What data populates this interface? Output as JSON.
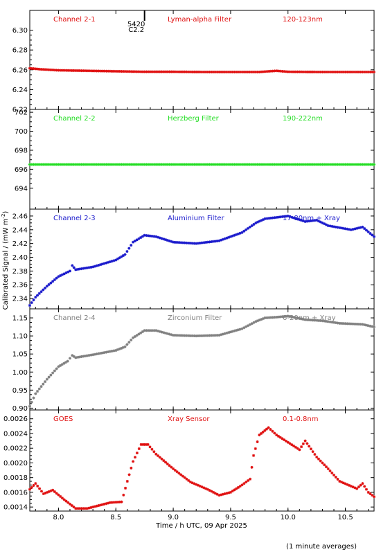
{
  "chart_data": {
    "type": "scatter",
    "xlabel": "Time / h UTC, 09 Apr 2025",
    "ylabel": "Calibrated Signal / (mW m",
    "ylabel_sup": "-2",
    "ylabel_close": ")",
    "footnote": "(1 minute averages)",
    "xlim": [
      7.75,
      10.75
    ],
    "xticks": [
      8.0,
      8.5,
      9.0,
      9.5,
      10.0,
      10.5
    ],
    "xtick_labels": [
      "8.0",
      "8.5",
      "9.0",
      "9.5",
      "10.0",
      "10.5"
    ],
    "flare_marker": {
      "x": 8.75,
      "labels": [
        "5420",
        "C2.2"
      ]
    },
    "panels": [
      {
        "name": "Channel 2-1",
        "labels": [
          "Channel 2-1",
          "Lyman-alpha Filter",
          "120-123nm"
        ],
        "color": "#e01010",
        "ylim": [
          6.22,
          6.32
        ],
        "yticks": [
          6.22,
          6.24,
          6.26,
          6.28,
          6.3
        ],
        "ytick_labels": [
          "6.22",
          "6.24",
          "6.26",
          "6.28",
          "6.30"
        ],
        "points": [
          [
            7.75,
            6.2615
          ],
          [
            7.85,
            6.2605
          ],
          [
            8.0,
            6.2595
          ],
          [
            8.25,
            6.259
          ],
          [
            8.5,
            6.2585
          ],
          [
            8.75,
            6.258
          ],
          [
            9.0,
            6.258
          ],
          [
            9.25,
            6.2578
          ],
          [
            9.5,
            6.2578
          ],
          [
            9.75,
            6.2578
          ],
          [
            9.9,
            6.259
          ],
          [
            10.0,
            6.258
          ],
          [
            10.25,
            6.2578
          ],
          [
            10.5,
            6.2578
          ],
          [
            10.75,
            6.2578
          ]
        ]
      },
      {
        "name": "Channel 2-2",
        "labels": [
          "Channel 2-2",
          "Herzberg Filter",
          "190-222nm"
        ],
        "color": "#22dd22",
        "ylim": [
          691.8,
          702.3
        ],
        "yticks": [
          694,
          696,
          698,
          700,
          702
        ],
        "ytick_labels": [
          "694",
          "696",
          "698",
          "700",
          "702"
        ],
        "points": [
          [
            7.75,
            696.5
          ],
          [
            8.5,
            696.5
          ],
          [
            9.0,
            696.5
          ],
          [
            9.25,
            696.5
          ],
          [
            9.5,
            696.5
          ],
          [
            10.0,
            696.5
          ],
          [
            10.5,
            696.5
          ],
          [
            10.75,
            696.5
          ]
        ]
      },
      {
        "name": "Channel 2-3",
        "labels": [
          "Channel 2-3",
          "Aluminium Filter",
          "17-80nm + Xray"
        ],
        "color": "#1a1acc",
        "ylim": [
          2.325,
          2.47
        ],
        "yticks": [
          2.34,
          2.36,
          2.38,
          2.4,
          2.42,
          2.44,
          2.46
        ],
        "ytick_labels": [
          "2.34",
          "2.36",
          "2.38",
          "2.40",
          "2.42",
          "2.44",
          "2.46"
        ],
        "points": [
          [
            7.75,
            2.33
          ],
          [
            7.8,
            2.342
          ],
          [
            7.9,
            2.358
          ],
          [
            8.0,
            2.372
          ],
          [
            8.1,
            2.38
          ],
          [
            8.12,
            2.388
          ],
          [
            8.15,
            2.382
          ],
          [
            8.3,
            2.386
          ],
          [
            8.5,
            2.396
          ],
          [
            8.58,
            2.404
          ],
          [
            8.65,
            2.422
          ],
          [
            8.75,
            2.432
          ],
          [
            8.85,
            2.43
          ],
          [
            9.0,
            2.422
          ],
          [
            9.2,
            2.42
          ],
          [
            9.4,
            2.424
          ],
          [
            9.6,
            2.436
          ],
          [
            9.72,
            2.45
          ],
          [
            9.8,
            2.456
          ],
          [
            9.9,
            2.458
          ],
          [
            10.0,
            2.46
          ],
          [
            10.15,
            2.452
          ],
          [
            10.25,
            2.454
          ],
          [
            10.35,
            2.446
          ],
          [
            10.55,
            2.44
          ],
          [
            10.65,
            2.444
          ],
          [
            10.75,
            2.43
          ]
        ]
      },
      {
        "name": "Channel 2-4",
        "labels": [
          "Channel 2-4",
          "Zirconium Filter",
          "6-20nm + Xray"
        ],
        "color": "#808080",
        "ylim": [
          0.895,
          1.175
        ],
        "yticks": [
          0.9,
          0.95,
          1.0,
          1.05,
          1.1,
          1.15
        ],
        "ytick_labels": [
          "0.90",
          "0.95",
          "1.00",
          "1.05",
          "1.10",
          "1.15"
        ],
        "points": [
          [
            7.75,
            0.905
          ],
          [
            7.8,
            0.94
          ],
          [
            7.9,
            0.98
          ],
          [
            8.0,
            1.015
          ],
          [
            8.08,
            1.03
          ],
          [
            8.12,
            1.046
          ],
          [
            8.15,
            1.04
          ],
          [
            8.3,
            1.048
          ],
          [
            8.5,
            1.06
          ],
          [
            8.58,
            1.07
          ],
          [
            8.65,
            1.095
          ],
          [
            8.75,
            1.115
          ],
          [
            8.85,
            1.115
          ],
          [
            9.0,
            1.102
          ],
          [
            9.2,
            1.1
          ],
          [
            9.4,
            1.102
          ],
          [
            9.6,
            1.12
          ],
          [
            9.72,
            1.14
          ],
          [
            9.8,
            1.15
          ],
          [
            9.9,
            1.152
          ],
          [
            10.0,
            1.155
          ],
          [
            10.15,
            1.145
          ],
          [
            10.3,
            1.142
          ],
          [
            10.45,
            1.135
          ],
          [
            10.65,
            1.132
          ],
          [
            10.75,
            1.125
          ]
        ]
      },
      {
        "name": "GOES",
        "labels": [
          "GOES",
          "Xray Sensor",
          "0.1-0.8nm"
        ],
        "color": "#e01010",
        "ylim": [
          0.001345,
          0.00272
        ],
        "yticks": [
          0.0014,
          0.0016,
          0.0018,
          0.002,
          0.0022,
          0.0024,
          0.0026
        ],
        "ytick_labels": [
          "0.0014",
          "0.0016",
          "0.0018",
          "0.0020",
          "0.0022",
          "0.0024",
          "0.0026"
        ],
        "points": [
          [
            7.75,
            0.00164
          ],
          [
            7.8,
            0.00172
          ],
          [
            7.87,
            0.00158
          ],
          [
            7.95,
            0.00163
          ],
          [
            8.05,
            0.0015
          ],
          [
            8.15,
            0.00138
          ],
          [
            8.25,
            0.00138
          ],
          [
            8.35,
            0.00142
          ],
          [
            8.45,
            0.00146
          ],
          [
            8.55,
            0.00147
          ],
          [
            8.6,
            0.00175
          ],
          [
            8.65,
            0.00202
          ],
          [
            8.72,
            0.00225
          ],
          [
            8.78,
            0.00225
          ],
          [
            8.85,
            0.00212
          ],
          [
            9.0,
            0.00192
          ],
          [
            9.15,
            0.00174
          ],
          [
            9.3,
            0.00164
          ],
          [
            9.4,
            0.00156
          ],
          [
            9.5,
            0.0016
          ],
          [
            9.6,
            0.0017
          ],
          [
            9.67,
            0.00178
          ],
          [
            9.7,
            0.0021
          ],
          [
            9.75,
            0.00238
          ],
          [
            9.83,
            0.00248
          ],
          [
            9.9,
            0.00238
          ],
          [
            10.0,
            0.00228
          ],
          [
            10.1,
            0.00218
          ],
          [
            10.15,
            0.0023
          ],
          [
            10.25,
            0.00208
          ],
          [
            10.35,
            0.00192
          ],
          [
            10.45,
            0.00175
          ],
          [
            10.6,
            0.00165
          ],
          [
            10.65,
            0.00172
          ],
          [
            10.7,
            0.0016
          ],
          [
            10.75,
            0.00154
          ]
        ]
      }
    ]
  }
}
